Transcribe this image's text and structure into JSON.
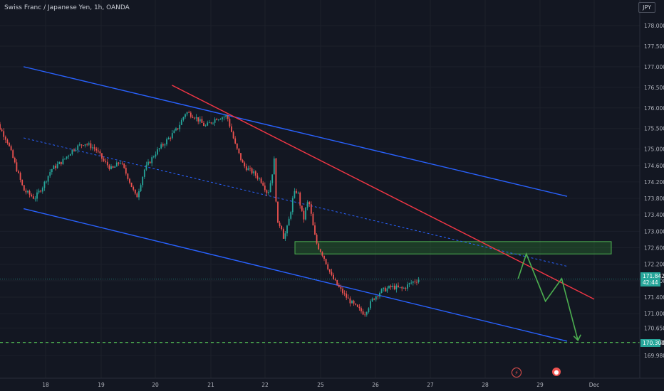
{
  "header": {
    "title": "Swiss Franc / Japanese Yen, 1h, OANDA",
    "currency": "JPY"
  },
  "price_tag": {
    "price": "171.842",
    "countdown": "42:44"
  },
  "target_tag": {
    "price": "170.300"
  },
  "events": [
    {
      "icon": "lightning-icon",
      "date": "28"
    },
    {
      "icon": "dividend-icon",
      "date": "29"
    }
  ],
  "colors": {
    "background": "#131722",
    "up": "#26a69a",
    "down": "#ef5350",
    "channel": "#2962ff",
    "trendline": "#f23645",
    "projection": "#4caf50",
    "zone": "#1b5e20"
  },
  "chart_data": {
    "type": "candlestick",
    "title": "Swiss Franc / Japanese Yen, 1h, OANDA",
    "ylim": [
      169.8,
      178.3
    ],
    "y_ticks": [
      "178.000",
      "177.500",
      "177.000",
      "176.500",
      "176.000",
      "175.500",
      "175.000",
      "174.600",
      "174.200",
      "173.800",
      "173.400",
      "173.000",
      "172.600",
      "172.200",
      "171.800",
      "171.400",
      "171.000",
      "170.650",
      "170.300",
      "169.980"
    ],
    "x_ticks": [
      "18",
      "19",
      "20",
      "21",
      "22",
      "25",
      "26",
      "27",
      "28",
      "29",
      "Dec"
    ],
    "last_price": 171.842,
    "target_level": 170.3,
    "support_zone": [
      172.45,
      172.75
    ],
    "channel_upper": [
      [
        17.6,
        177.0
      ],
      [
        29.5,
        173.85
      ]
    ],
    "channel_lower": [
      [
        17.6,
        173.55
      ],
      [
        29.5,
        170.33
      ]
    ],
    "channel_mid": [
      [
        17.6,
        175.27
      ],
      [
        29.5,
        172.15
      ]
    ],
    "red_trendline": [
      [
        20.3,
        176.55
      ],
      [
        30.5,
        171.35
      ]
    ],
    "projection_path": [
      [
        28.6,
        171.85
      ],
      [
        28.75,
        172.45
      ],
      [
        29.1,
        171.3
      ],
      [
        29.4,
        171.85
      ],
      [
        29.7,
        170.35
      ]
    ],
    "price_path": [
      [
        17.0,
        175.9
      ],
      [
        17.3,
        175.2
      ],
      [
        17.6,
        174.0
      ],
      [
        17.8,
        173.8
      ],
      [
        17.95,
        174.1
      ],
      [
        18.1,
        174.5
      ],
      [
        18.3,
        174.7
      ],
      [
        18.5,
        175.0
      ],
      [
        18.7,
        175.15
      ],
      [
        18.9,
        175.0
      ],
      [
        19.05,
        174.7
      ],
      [
        19.2,
        174.5
      ],
      [
        19.35,
        174.7
      ],
      [
        19.5,
        174.3
      ],
      [
        19.65,
        173.8
      ],
      [
        19.8,
        174.5
      ],
      [
        20.0,
        174.9
      ],
      [
        20.2,
        175.2
      ],
      [
        20.4,
        175.5
      ],
      [
        20.55,
        175.9
      ],
      [
        20.7,
        175.8
      ],
      [
        20.9,
        175.55
      ],
      [
        21.1,
        175.75
      ],
      [
        21.3,
        175.8
      ],
      [
        21.45,
        175.1
      ],
      [
        21.6,
        174.6
      ],
      [
        21.8,
        174.4
      ],
      [
        21.95,
        174.2
      ],
      [
        22.15,
        173.9
      ],
      [
        22.35,
        174.3
      ],
      [
        22.5,
        174.75
      ],
      [
        22.6,
        173.7
      ],
      [
        22.7,
        173.1
      ],
      [
        22.85,
        173.2
      ],
      [
        23.0,
        172.85
      ],
      [
        23.15,
        173.0
      ],
      [
        23.35,
        173.4
      ],
      [
        23.5,
        173.8
      ],
      [
        23.65,
        174.0
      ],
      [
        23.8,
        173.9
      ],
      [
        23.95,
        173.5
      ],
      [
        24.1,
        173.3
      ],
      [
        24.25,
        173.7
      ],
      [
        24.4,
        173.65
      ],
      [
        24.6,
        173.1
      ],
      [
        24.75,
        172.75
      ],
      [
        24.9,
        172.6
      ],
      [
        25.05,
        172.4
      ],
      [
        25.2,
        171.9
      ],
      [
        25.35,
        171.6
      ],
      [
        25.5,
        171.35
      ],
      [
        25.65,
        171.15
      ],
      [
        25.8,
        171.0
      ],
      [
        25.95,
        171.35
      ],
      [
        26.1,
        171.55
      ],
      [
        26.3,
        171.65
      ],
      [
        26.5,
        171.6
      ],
      [
        26.65,
        171.75
      ],
      [
        26.8,
        171.84
      ]
    ]
  }
}
